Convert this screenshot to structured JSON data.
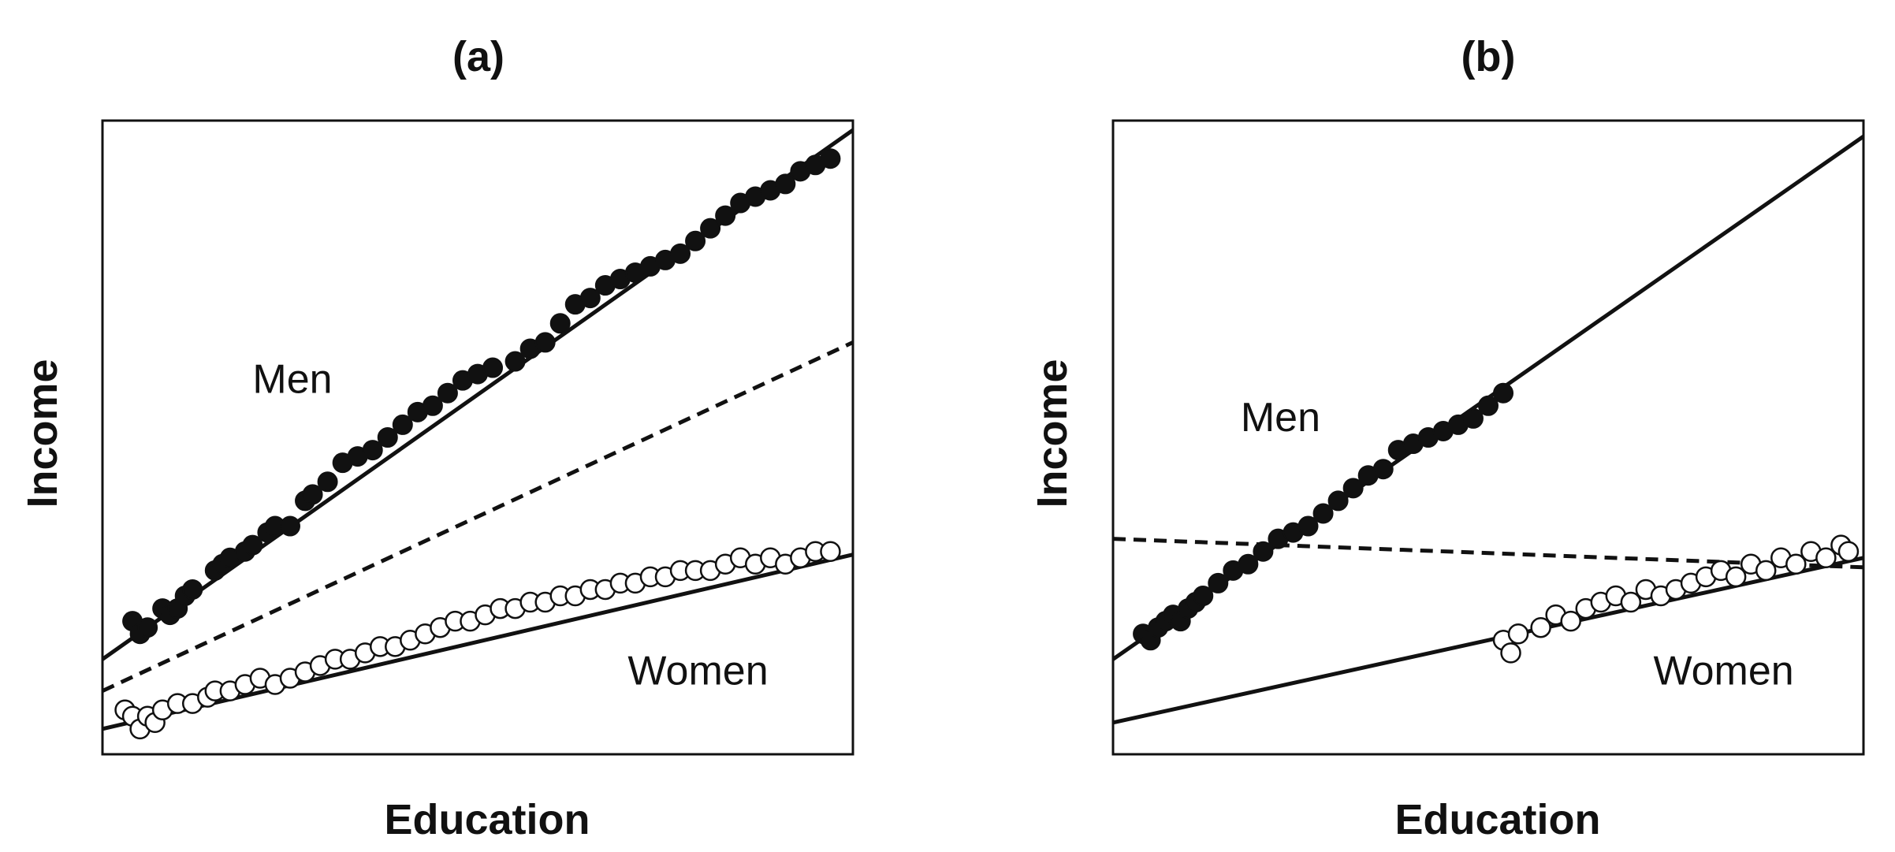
{
  "chart_data": [
    {
      "type": "scatter",
      "title": "(a)",
      "xlabel": "Education",
      "ylabel": "Income",
      "xlim": [
        0,
        100
      ],
      "ylim": [
        0,
        100
      ],
      "ticks": false,
      "grid": false,
      "series": [
        {
          "name": "Men",
          "marker": "filled-circle",
          "fit_line": {
            "x": [
              0,
              100
            ],
            "y": [
              15,
              98.5
            ],
            "style": "solid"
          },
          "points": [
            [
              4,
              21
            ],
            [
              5,
              19
            ],
            [
              6,
              20
            ],
            [
              8,
              23
            ],
            [
              9,
              22
            ],
            [
              10,
              23
            ],
            [
              11,
              25
            ],
            [
              12,
              26
            ],
            [
              15,
              29
            ],
            [
              16,
              30
            ],
            [
              17,
              31
            ],
            [
              19,
              32
            ],
            [
              20,
              33
            ],
            [
              22,
              35
            ],
            [
              23,
              36
            ],
            [
              25,
              36
            ],
            [
              27,
              40
            ],
            [
              28,
              41
            ],
            [
              30,
              43
            ],
            [
              32,
              46
            ],
            [
              34,
              47
            ],
            [
              36,
              48
            ],
            [
              38,
              50
            ],
            [
              40,
              52
            ],
            [
              42,
              54
            ],
            [
              44,
              55
            ],
            [
              46,
              57
            ],
            [
              48,
              59
            ],
            [
              50,
              60
            ],
            [
              52,
              61
            ],
            [
              55,
              62
            ],
            [
              57,
              64
            ],
            [
              59,
              65
            ],
            [
              61,
              68
            ],
            [
              63,
              71
            ],
            [
              65,
              72
            ],
            [
              67,
              74
            ],
            [
              69,
              75
            ],
            [
              71,
              76
            ],
            [
              73,
              77
            ],
            [
              75,
              78
            ],
            [
              77,
              79
            ],
            [
              79,
              81
            ],
            [
              81,
              83
            ],
            [
              83,
              85
            ],
            [
              85,
              87
            ],
            [
              87,
              88
            ],
            [
              89,
              89
            ],
            [
              91,
              90
            ],
            [
              93,
              92
            ],
            [
              95,
              93
            ],
            [
              97,
              94
            ]
          ]
        },
        {
          "name": "Women",
          "marker": "open-circle",
          "fit_line": {
            "x": [
              0,
              100
            ],
            "y": [
              4,
              31.5
            ],
            "style": "solid"
          },
          "points": [
            [
              3,
              7
            ],
            [
              4,
              6
            ],
            [
              5,
              4
            ],
            [
              6,
              6
            ],
            [
              7,
              5
            ],
            [
              8,
              7
            ],
            [
              10,
              8
            ],
            [
              12,
              8
            ],
            [
              14,
              9
            ],
            [
              15,
              10
            ],
            [
              17,
              10
            ],
            [
              19,
              11
            ],
            [
              21,
              12
            ],
            [
              23,
              11
            ],
            [
              25,
              12
            ],
            [
              27,
              13
            ],
            [
              29,
              14
            ],
            [
              31,
              15
            ],
            [
              33,
              15
            ],
            [
              35,
              16
            ],
            [
              37,
              17
            ],
            [
              39,
              17
            ],
            [
              41,
              18
            ],
            [
              43,
              19
            ],
            [
              45,
              20
            ],
            [
              47,
              21
            ],
            [
              49,
              21
            ],
            [
              51,
              22
            ],
            [
              53,
              23
            ],
            [
              55,
              23
            ],
            [
              57,
              24
            ],
            [
              59,
              24
            ],
            [
              61,
              25
            ],
            [
              63,
              25
            ],
            [
              65,
              26
            ],
            [
              67,
              26
            ],
            [
              69,
              27
            ],
            [
              71,
              27
            ],
            [
              73,
              28
            ],
            [
              75,
              28
            ],
            [
              77,
              29
            ],
            [
              79,
              29
            ],
            [
              81,
              29
            ],
            [
              83,
              30
            ],
            [
              85,
              31
            ],
            [
              87,
              30
            ],
            [
              89,
              31
            ],
            [
              91,
              30
            ],
            [
              93,
              31
            ],
            [
              95,
              32
            ],
            [
              97,
              32
            ]
          ]
        },
        {
          "name": "",
          "fit_line": {
            "x": [
              0,
              100
            ],
            "y": [
              10,
              65
            ],
            "style": "dashed"
          }
        }
      ],
      "annotations": [
        {
          "text": "Men",
          "x": 20,
          "y": 57
        },
        {
          "text": "Women",
          "x": 70,
          "y": 11
        }
      ]
    },
    {
      "type": "scatter",
      "title": "(b)",
      "xlabel": "Education",
      "ylabel": "Income",
      "xlim": [
        0,
        100
      ],
      "ylim": [
        0,
        100
      ],
      "ticks": false,
      "grid": false,
      "series": [
        {
          "name": "Men",
          "marker": "filled-circle",
          "fit_line": {
            "x": [
              0,
              100
            ],
            "y": [
              15,
              97.5
            ],
            "style": "solid"
          },
          "points": [
            [
              4,
              19
            ],
            [
              5,
              18
            ],
            [
              6,
              20
            ],
            [
              7,
              21
            ],
            [
              8,
              22
            ],
            [
              9,
              21
            ],
            [
              10,
              23
            ],
            [
              11,
              24
            ],
            [
              12,
              25
            ],
            [
              14,
              27
            ],
            [
              16,
              29
            ],
            [
              18,
              30
            ],
            [
              20,
              32
            ],
            [
              22,
              34
            ],
            [
              24,
              35
            ],
            [
              26,
              36
            ],
            [
              28,
              38
            ],
            [
              30,
              40
            ],
            [
              32,
              42
            ],
            [
              34,
              44
            ],
            [
              36,
              45
            ],
            [
              38,
              48
            ],
            [
              40,
              49
            ],
            [
              42,
              50
            ],
            [
              44,
              51
            ],
            [
              46,
              52
            ],
            [
              48,
              53
            ],
            [
              50,
              55
            ],
            [
              52,
              57
            ]
          ]
        },
        {
          "name": "Women",
          "marker": "open-circle",
          "fit_line": {
            "x": [
              0,
              100
            ],
            "y": [
              5,
              31
            ],
            "style": "solid"
          },
          "points": [
            [
              52,
              18
            ],
            [
              53,
              16
            ],
            [
              54,
              19
            ],
            [
              57,
              20
            ],
            [
              59,
              22
            ],
            [
              61,
              21
            ],
            [
              63,
              23
            ],
            [
              65,
              24
            ],
            [
              67,
              25
            ],
            [
              69,
              24
            ],
            [
              71,
              26
            ],
            [
              73,
              25
            ],
            [
              75,
              26
            ],
            [
              77,
              27
            ],
            [
              79,
              28
            ],
            [
              81,
              29
            ],
            [
              83,
              28
            ],
            [
              85,
              30
            ],
            [
              87,
              29
            ],
            [
              89,
              31
            ],
            [
              91,
              30
            ],
            [
              93,
              32
            ],
            [
              95,
              31
            ],
            [
              97,
              33
            ],
            [
              98,
              32
            ]
          ]
        },
        {
          "name": "",
          "fit_line": {
            "x": [
              0,
              100
            ],
            "y": [
              34,
              29.5
            ],
            "style": "dashed"
          }
        }
      ],
      "annotations": [
        {
          "text": "Men",
          "x": 17,
          "y": 51
        },
        {
          "text": "Women",
          "x": 72,
          "y": 11
        }
      ]
    }
  ]
}
